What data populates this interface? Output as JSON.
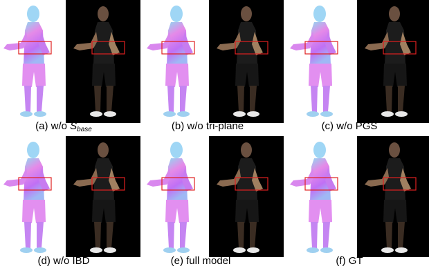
{
  "panels": [
    {
      "caption": {
        "prefix": "(a) w/o ",
        "symbol": "S",
        "subscript": "base"
      }
    },
    {
      "caption": "(b) w/o tri-plane"
    },
    {
      "caption": "(c) w/o PGS"
    },
    {
      "caption": "(d) w/o IBD"
    },
    {
      "caption": "(e) full model"
    },
    {
      "caption": "(f) GT"
    }
  ]
}
